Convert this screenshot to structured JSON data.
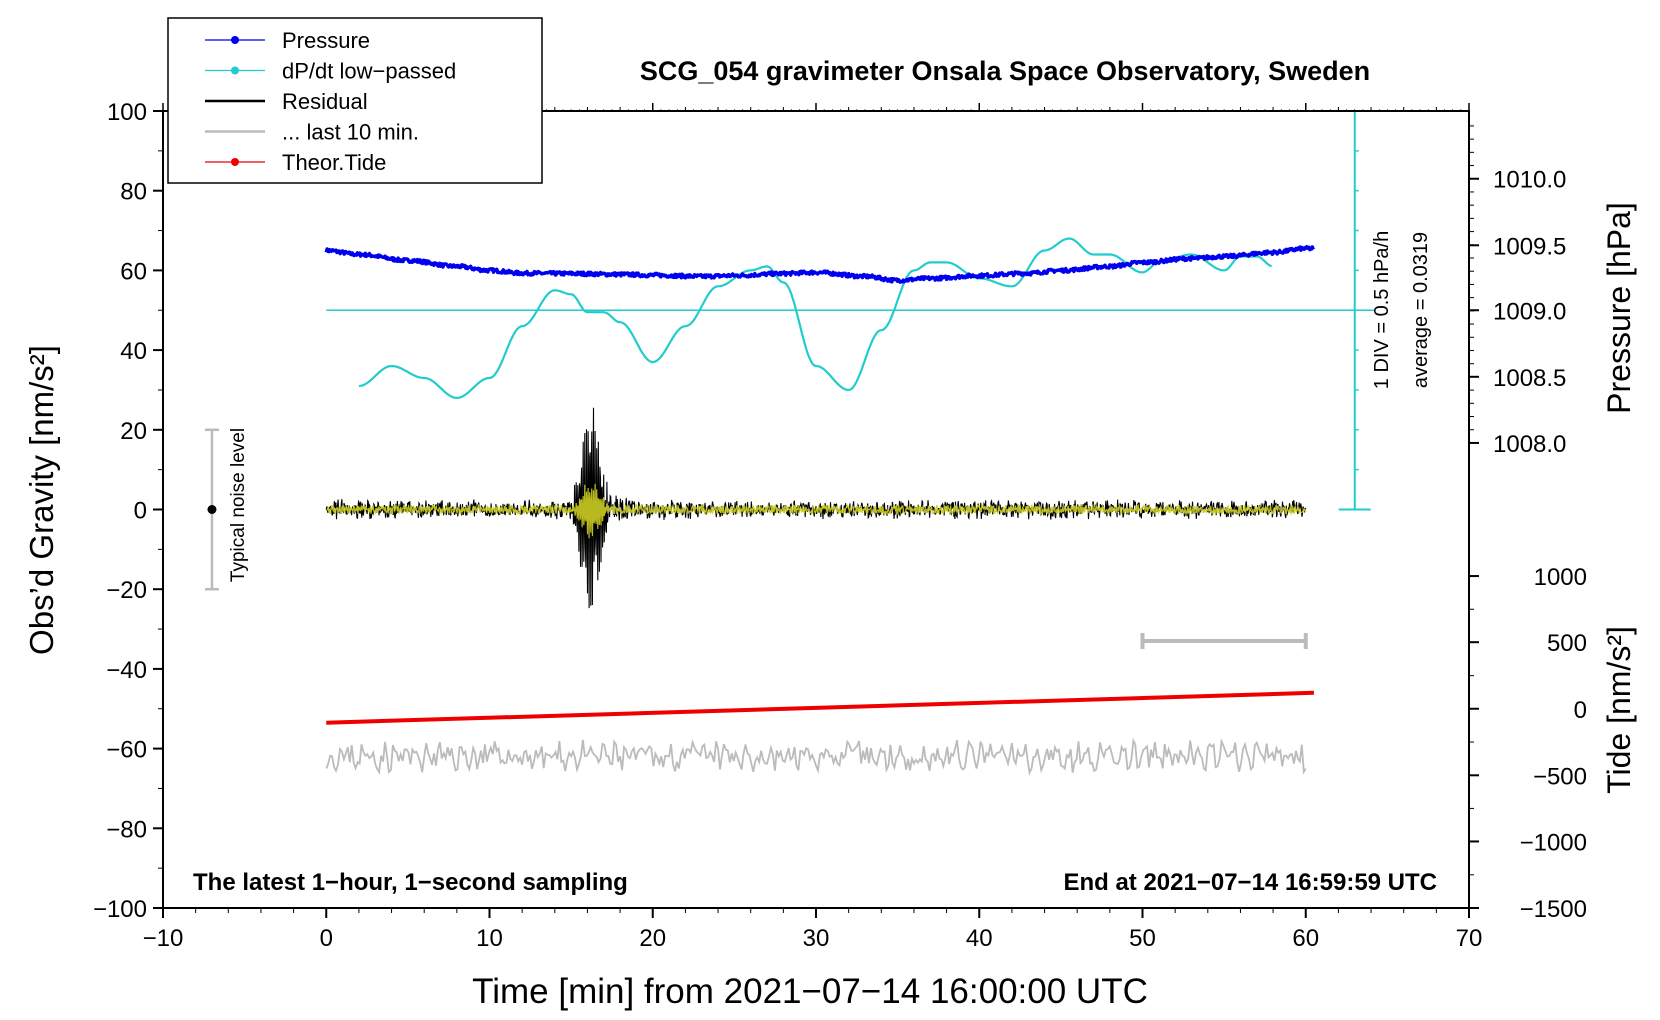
{
  "chart_data": {
    "type": "line",
    "title": "SCG_054 gravimeter Onsala Space Observatory, Sweden",
    "xlabel": "Time [min] from 2021−07−14 16:00:00 UTC",
    "ylabel_left": "Obs’d Gravity [nm/s²]",
    "ylabel_right_top": "Pressure [hPa]",
    "ylabel_right_bottom": "Tide [nm/s²]",
    "xlim": [
      -10,
      70
    ],
    "ylim_left": [
      -100,
      100
    ],
    "x_ticks": [
      "−10",
      "0",
      "10",
      "20",
      "30",
      "40",
      "50",
      "60",
      "70"
    ],
    "x_tick_values": [
      -10,
      0,
      10,
      20,
      30,
      40,
      50,
      60,
      70
    ],
    "y_ticks_left": [
      "100",
      "80",
      "60",
      "40",
      "20",
      "0",
      "−20",
      "−40",
      "−60",
      "−80",
      "−100"
    ],
    "y_tick_values_left": [
      100,
      80,
      60,
      40,
      20,
      0,
      -20,
      -40,
      -60,
      -80,
      -100
    ],
    "pressure_axis": {
      "ticks": [
        "1010.0",
        "1009.5",
        "1009.0",
        "1008.5",
        "1008.0"
      ],
      "tick_values": [
        1010.0,
        1009.5,
        1009.0,
        1008.5,
        1008.0
      ],
      "gravity_equivalent": [
        83,
        66.3,
        50,
        33.3,
        16.7
      ]
    },
    "tide_axis": {
      "ticks": [
        "1000",
        "500",
        "0",
        "−500",
        "−1000",
        "−1500"
      ],
      "tick_values": [
        1000,
        500,
        0,
        -500,
        -1000,
        -1500
      ],
      "gravity_equivalent": [
        -16.7,
        -33.3,
        -50,
        -66.7,
        -83.3,
        -100
      ]
    },
    "legend": [
      {
        "label": "Pressure",
        "color": "#0000ee",
        "style": "line-dot"
      },
      {
        "label": "dP/dt low−passed",
        "color": "#22cccc",
        "style": "line-dot"
      },
      {
        "label": "Residual",
        "color": "#000000",
        "style": "line"
      },
      {
        "label": "... last 10 min.",
        "color": "#bbbbbb",
        "style": "line"
      },
      {
        "label": "Theor.Tide",
        "color": "#ee0000",
        "style": "line-dot"
      }
    ],
    "series": {
      "pressure": {
        "name": "Pressure",
        "color": "#0000ee",
        "x": [
          0,
          2,
          5,
          8,
          10,
          12,
          15,
          18,
          20,
          23,
          25,
          28,
          30,
          33,
          35,
          37,
          40,
          43,
          45,
          48,
          50,
          53,
          55,
          58,
          60
        ],
        "y": [
          65,
          64,
          62.5,
          61,
          60,
          59.3,
          59.2,
          59,
          58.8,
          58.5,
          58.7,
          59.2,
          59.5,
          58.5,
          57.5,
          58,
          58.7,
          59.3,
          60,
          61,
          62,
          63,
          63.5,
          64.5,
          65.5
        ]
      },
      "dpdt": {
        "name": "dP/dt low−passed",
        "color": "#22cccc",
        "average_line_y": 50,
        "x": [
          2,
          4,
          6,
          8,
          10,
          12,
          14,
          15,
          16,
          17,
          18,
          20,
          22,
          24,
          26,
          27,
          28,
          30,
          32,
          34,
          36,
          37,
          38,
          40,
          42,
          44,
          45.5,
          47,
          48,
          50,
          51,
          53,
          55,
          56,
          57,
          58
        ],
        "y": [
          31,
          36,
          33,
          28,
          33,
          46,
          55,
          54,
          49.5,
          49.5,
          47,
          37,
          46,
          56,
          60,
          61,
          57,
          36,
          30,
          45,
          60,
          62,
          62,
          58,
          56,
          65,
          68,
          64,
          64,
          59.5,
          62,
          64,
          60,
          63.5,
          63.5,
          61
        ]
      },
      "residual": {
        "name": "Residual",
        "color": "#000000",
        "overlay_color": "#cccc22",
        "noise_amplitude": 3,
        "event_center_min": 16.2,
        "event_peak": [
          30,
          -26
        ]
      },
      "last10": {
        "name": "... last 10 min.",
        "color": "#bbbbbb",
        "baseline": -62,
        "amplitude": 3
      },
      "tide": {
        "name": "Theor.Tide",
        "color": "#ee0000",
        "x": [
          0,
          60.5
        ],
        "y": [
          -53.5,
          -46
        ]
      }
    },
    "typical_noise_level": {
      "label": "Typical noise level",
      "x": -7,
      "center": 0,
      "range": [
        -20,
        20
      ]
    },
    "scale_bar_10min": {
      "x": [
        50,
        60
      ],
      "y": -33
    },
    "pressure_scale_bar": {
      "label": "1 DIV = 0.5 hPa/h",
      "x": 63,
      "range": [
        0,
        100
      ],
      "divisions": 10
    },
    "average_label": "average = 0.0319",
    "annotation_left": "The latest 1−hour, 1−second sampling",
    "annotation_right": "End at 2021−07−14 16:59:59 UTC"
  }
}
